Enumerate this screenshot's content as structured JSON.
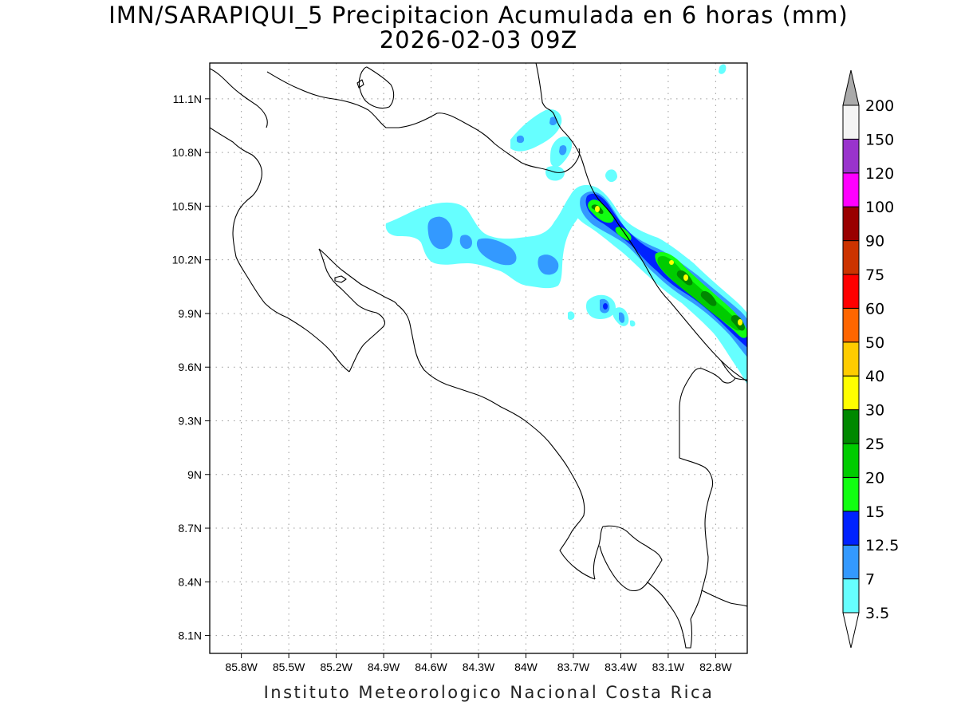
{
  "title": "IMN/SARAPIQUI_5 Precipitacion Acumulada en 6 horas (mm)",
  "subtitle": "2026-02-03 09Z",
  "credit": "Instituto Meteorologico Nacional Costa Rica",
  "map": {
    "lon_range": [
      -86.0,
      -82.6
    ],
    "lat_range": [
      8.0,
      11.3
    ],
    "y_ticks": [
      "11.1N",
      "10.8N",
      "10.5N",
      "10.2N",
      "9.9N",
      "9.6N",
      "9.3N",
      "9N",
      "8.7N",
      "8.4N",
      "8.1N"
    ],
    "x_ticks": [
      "85.8W",
      "85.5W",
      "85.2W",
      "84.9W",
      "84.6W",
      "84.3W",
      "84W",
      "83.7W",
      "83.4W",
      "83.1W",
      "82.8W"
    ],
    "grid": "dotted"
  },
  "colorbar": {
    "labels": [
      "3.5",
      "7",
      "12.5",
      "15",
      "20",
      "25",
      "30",
      "40",
      "50",
      "60",
      "75",
      "90",
      "100",
      "120",
      "150",
      "200"
    ],
    "colors": [
      "#66ffff",
      "#3399ff",
      "#0022ff",
      "#11ff11",
      "#00cc00",
      "#008800",
      "#ffff00",
      "#ffcc00",
      "#ff6600",
      "#ff0000",
      "#cc3300",
      "#990000",
      "#ff00ff",
      "#9933cc",
      "#f4f4f4"
    ],
    "upper_arrow_color": "#aaaaaa",
    "lower_arrow_color": "#ffffff"
  }
}
